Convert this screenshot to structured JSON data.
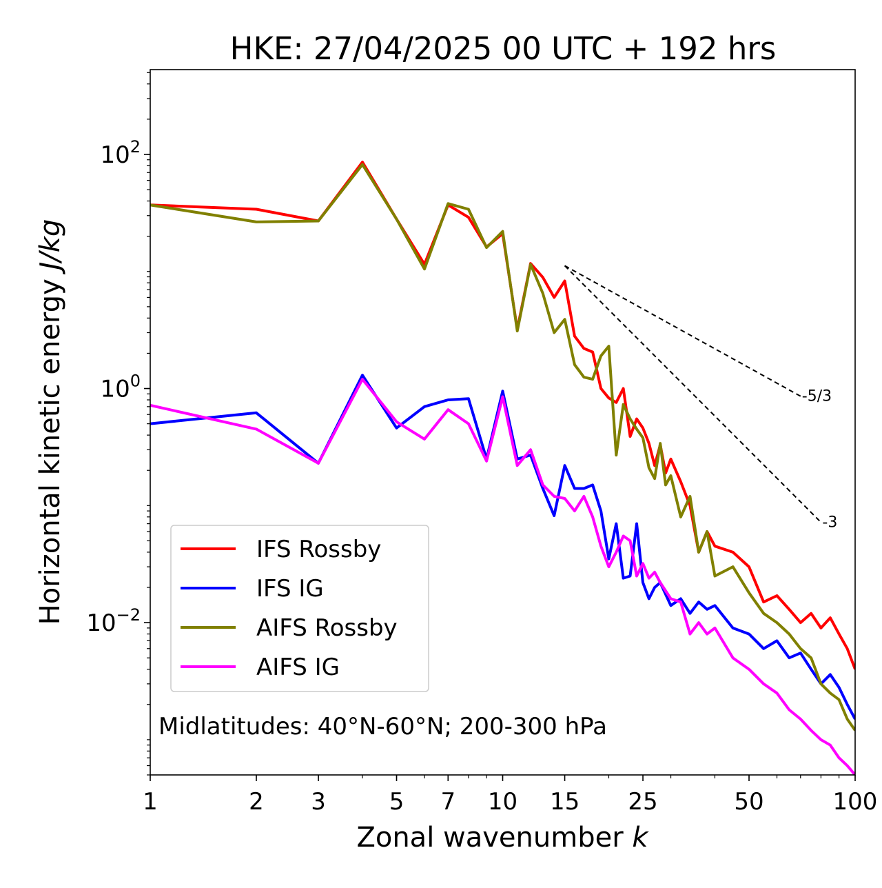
{
  "chart_data": {
    "type": "line",
    "title": "HKE: 27/04/2025 00 UTC + 192 hrs",
    "xlabel": "Zonal wavenumber",
    "xlabel_var": "k",
    "ylabel": "Horizontal kinetic energy",
    "ylabel_unit": "J/kg",
    "xscale": "log",
    "yscale": "log",
    "xlim": [
      1,
      100
    ],
    "ylim": [
      0.0005,
      530
    ],
    "x_ticks": [
      1,
      2,
      3,
      5,
      7,
      10,
      15,
      25,
      50,
      100
    ],
    "x_tick_labels": [
      "1",
      "2",
      "3",
      "5",
      "7",
      "10",
      "15",
      "25",
      "50",
      "100"
    ],
    "y_ticks": [
      0.01,
      1,
      100
    ],
    "y_tick_labels": [
      {
        "base": "10",
        "exp": "−2"
      },
      {
        "base": "10",
        "exp": "0"
      },
      {
        "base": "10",
        "exp": "2"
      }
    ],
    "grid": false,
    "legend_placement": "lower-left",
    "annotation": "Midlatitudes: 40°N-60°N; 200-300 hPa",
    "reference_lines": [
      {
        "label": "-5/3",
        "x": [
          15,
          70
        ],
        "y": [
          11.2,
          0.86
        ]
      },
      {
        "label": "-3",
        "x": [
          15,
          80
        ],
        "y": [
          11.2,
          0.072
        ]
      }
    ],
    "series": [
      {
        "name": "IFS Rossby",
        "color": "#ff0000",
        "x": [
          1,
          2,
          3,
          4,
          5,
          6,
          7,
          8,
          9,
          10,
          11,
          12,
          13,
          14,
          15,
          16,
          17,
          18,
          19,
          20,
          21,
          22,
          23,
          24,
          25,
          26,
          27,
          28,
          29,
          30,
          32,
          34,
          36,
          38,
          40,
          45,
          50,
          55,
          60,
          65,
          70,
          75,
          80,
          85,
          90,
          95,
          100
        ],
        "y": [
          37,
          34,
          27,
          86,
          28,
          11.5,
          37,
          29,
          16.2,
          21,
          3.2,
          11.7,
          8.9,
          6.0,
          8.3,
          2.8,
          2.2,
          2.05,
          1.0,
          0.83,
          0.76,
          1.0,
          0.39,
          0.55,
          0.46,
          0.34,
          0.22,
          0.33,
          0.19,
          0.25,
          0.16,
          0.1,
          0.04,
          0.06,
          0.045,
          0.04,
          0.03,
          0.015,
          0.017,
          0.013,
          0.01,
          0.012,
          0.009,
          0.011,
          0.008,
          0.006,
          0.004
        ]
      },
      {
        "name": "IFS IG",
        "color": "#0000ff",
        "x": [
          1,
          2,
          3,
          4,
          5,
          6,
          7,
          8,
          9,
          10,
          11,
          12,
          13,
          14,
          15,
          16,
          17,
          18,
          19,
          20,
          21,
          22,
          23,
          24,
          25,
          26,
          27,
          28,
          30,
          32,
          34,
          36,
          38,
          40,
          45,
          50,
          55,
          60,
          65,
          70,
          75,
          80,
          85,
          90,
          95,
          100
        ],
        "y": [
          0.5,
          0.62,
          0.23,
          1.3,
          0.46,
          0.7,
          0.8,
          0.82,
          0.25,
          0.95,
          0.25,
          0.27,
          0.14,
          0.082,
          0.22,
          0.14,
          0.14,
          0.15,
          0.09,
          0.035,
          0.07,
          0.024,
          0.025,
          0.07,
          0.022,
          0.016,
          0.02,
          0.022,
          0.014,
          0.016,
          0.012,
          0.015,
          0.013,
          0.014,
          0.009,
          0.008,
          0.006,
          0.007,
          0.005,
          0.0055,
          0.004,
          0.003,
          0.0036,
          0.0028,
          0.002,
          0.0015
        ]
      },
      {
        "name": "AIFS Rossby",
        "color": "#808000",
        "x": [
          1,
          2,
          3,
          4,
          5,
          6,
          7,
          8,
          9,
          10,
          11,
          12,
          13,
          14,
          15,
          16,
          17,
          18,
          19,
          20,
          21,
          22,
          23,
          24,
          25,
          26,
          27,
          28,
          29,
          30,
          32,
          34,
          36,
          38,
          40,
          45,
          50,
          55,
          60,
          65,
          70,
          75,
          80,
          85,
          90,
          95,
          100
        ],
        "y": [
          37,
          26.5,
          27,
          82,
          28,
          10.5,
          38,
          34,
          16,
          22,
          3.1,
          11.5,
          6.5,
          3.0,
          3.9,
          1.6,
          1.25,
          1.2,
          1.9,
          2.3,
          0.27,
          0.73,
          0.55,
          0.45,
          0.38,
          0.21,
          0.17,
          0.34,
          0.15,
          0.18,
          0.08,
          0.12,
          0.04,
          0.06,
          0.025,
          0.03,
          0.018,
          0.012,
          0.01,
          0.008,
          0.006,
          0.005,
          0.003,
          0.0025,
          0.0022,
          0.0015,
          0.0012
        ]
      },
      {
        "name": "AIFS IG",
        "color": "#ff00ff",
        "x": [
          1,
          2,
          3,
          4,
          5,
          6,
          7,
          8,
          9,
          10,
          11,
          12,
          13,
          14,
          15,
          16,
          17,
          18,
          19,
          20,
          21,
          22,
          23,
          24,
          25,
          26,
          27,
          28,
          30,
          32,
          34,
          36,
          38,
          40,
          45,
          50,
          55,
          60,
          65,
          70,
          75,
          80,
          85,
          90,
          95,
          100
        ],
        "y": [
          0.72,
          0.45,
          0.23,
          1.2,
          0.52,
          0.37,
          0.66,
          0.5,
          0.24,
          0.85,
          0.22,
          0.3,
          0.15,
          0.12,
          0.115,
          0.09,
          0.12,
          0.08,
          0.045,
          0.03,
          0.04,
          0.055,
          0.05,
          0.025,
          0.032,
          0.024,
          0.027,
          0.022,
          0.016,
          0.015,
          0.008,
          0.01,
          0.008,
          0.009,
          0.005,
          0.004,
          0.003,
          0.0025,
          0.0018,
          0.0015,
          0.0012,
          0.001,
          0.0009,
          0.0007,
          0.0006,
          0.0005
        ]
      }
    ]
  }
}
